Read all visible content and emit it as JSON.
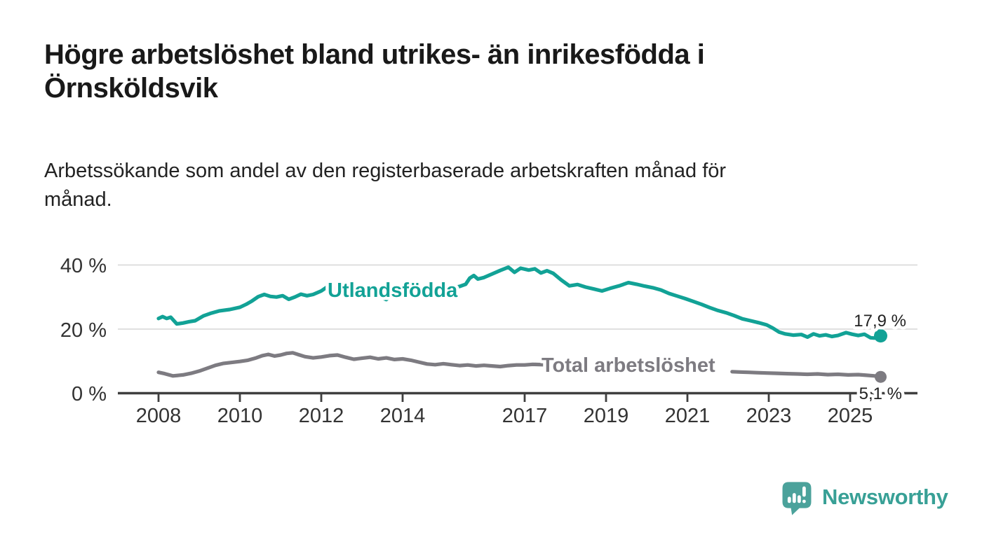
{
  "brand": {
    "name": "Newsworthy"
  },
  "colors": {
    "series_foreign_born": "#12a296",
    "series_total": "#7d7b81",
    "gridline": "#d9d9d9",
    "axis": "#3f3f3f",
    "title_text": "#191919",
    "tick_text": "#333333",
    "logo_mark": "#4ba29b",
    "logo_text": "#38a096"
  },
  "chart_data": {
    "type": "line",
    "title": "Högre arbetslöshet bland utrikes- än inrikesfödda i Örnsköldsvik",
    "title_lines": [
      "Högre arbetslöshet bland utrikes- än inrikesfödda i",
      "Örnsköldsvik"
    ],
    "subtitle": "Arbetssökande som andel av den registerbaserade arbetskraften månad för månad.",
    "subtitle_lines": [
      "Arbetssökande som andel av den registerbaserade arbetskraften månad för",
      "månad."
    ],
    "unit": "%",
    "grid": "horizontal",
    "legend_position": "inline-labels",
    "xlim": [
      2007.9,
      2026.6
    ],
    "ylim": [
      0,
      43.5
    ],
    "x_ticks": [
      {
        "year": 2008,
        "label": "2008"
      },
      {
        "year": 2010,
        "label": "2010"
      },
      {
        "year": 2012,
        "label": "2012"
      },
      {
        "year": 2014,
        "label": "2014"
      },
      {
        "year": 2017,
        "label": "2017"
      },
      {
        "year": 2019,
        "label": "2019"
      },
      {
        "year": 2021,
        "label": "2021"
      },
      {
        "year": 2023,
        "label": "2023"
      },
      {
        "year": 2025,
        "label": "2025"
      }
    ],
    "y_ticks": [
      {
        "value": 0,
        "label": "0 %"
      },
      {
        "value": 20,
        "label": "20 %"
      },
      {
        "value": 40,
        "label": "40 %"
      }
    ],
    "series": [
      {
        "name": "Utlandsfödda",
        "color": "#12a296",
        "end_label": "17,9 %",
        "end_value": 17.9,
        "points": [
          [
            2008.0,
            23.3
          ],
          [
            2008.1,
            23.9
          ],
          [
            2008.2,
            23.3
          ],
          [
            2008.3,
            23.7
          ],
          [
            2008.45,
            21.6
          ],
          [
            2008.6,
            21.9
          ],
          [
            2008.75,
            22.3
          ],
          [
            2008.9,
            22.6
          ],
          [
            2009.1,
            24.1
          ],
          [
            2009.3,
            25.0
          ],
          [
            2009.5,
            25.7
          ],
          [
            2009.75,
            26.1
          ],
          [
            2010.0,
            26.8
          ],
          [
            2010.15,
            27.7
          ],
          [
            2010.3,
            28.8
          ],
          [
            2010.45,
            30.1
          ],
          [
            2010.6,
            30.8
          ],
          [
            2010.75,
            30.2
          ],
          [
            2010.9,
            30.0
          ],
          [
            2011.05,
            30.4
          ],
          [
            2011.2,
            29.3
          ],
          [
            2011.35,
            30.0
          ],
          [
            2011.5,
            30.9
          ],
          [
            2011.65,
            30.4
          ],
          [
            2011.8,
            30.8
          ],
          [
            2012.0,
            31.9
          ],
          [
            2012.15,
            33.2
          ],
          [
            2012.3,
            32.9
          ],
          [
            2012.45,
            31.7
          ],
          [
            2012.6,
            32.0
          ],
          [
            2012.8,
            32.3
          ],
          [
            2013.0,
            32.1
          ],
          [
            2013.2,
            32.5
          ],
          [
            2013.35,
            31.7
          ],
          [
            2013.45,
            30.0
          ],
          [
            2013.6,
            29.2
          ],
          [
            2013.75,
            30.8
          ],
          [
            2014.0,
            31.5
          ],
          [
            2014.2,
            32.3
          ],
          [
            2014.4,
            31.8
          ],
          [
            2014.6,
            31.4
          ],
          [
            2014.8,
            31.9
          ],
          [
            2015.0,
            32.3
          ],
          [
            2015.2,
            32.8
          ],
          [
            2015.4,
            33.3
          ],
          [
            2015.55,
            34.0
          ],
          [
            2015.65,
            35.9
          ],
          [
            2015.75,
            36.7
          ],
          [
            2015.85,
            35.6
          ],
          [
            2016.0,
            36.1
          ],
          [
            2016.2,
            37.2
          ],
          [
            2016.4,
            38.3
          ],
          [
            2016.6,
            39.3
          ],
          [
            2016.75,
            37.7
          ],
          [
            2016.9,
            39.0
          ],
          [
            2017.1,
            38.4
          ],
          [
            2017.25,
            38.8
          ],
          [
            2017.4,
            37.5
          ],
          [
            2017.55,
            38.2
          ],
          [
            2017.7,
            37.4
          ],
          [
            2017.9,
            35.3
          ],
          [
            2018.1,
            33.5
          ],
          [
            2018.3,
            33.9
          ],
          [
            2018.5,
            33.1
          ],
          [
            2018.7,
            32.5
          ],
          [
            2018.9,
            31.9
          ],
          [
            2019.1,
            32.7
          ],
          [
            2019.35,
            33.6
          ],
          [
            2019.55,
            34.5
          ],
          [
            2019.75,
            34.0
          ],
          [
            2019.95,
            33.4
          ],
          [
            2020.15,
            32.9
          ],
          [
            2020.35,
            32.2
          ],
          [
            2020.55,
            31.1
          ],
          [
            2020.75,
            30.3
          ],
          [
            2020.95,
            29.5
          ],
          [
            2021.15,
            28.6
          ],
          [
            2021.35,
            27.7
          ],
          [
            2021.55,
            26.7
          ],
          [
            2021.75,
            25.8
          ],
          [
            2021.95,
            25.1
          ],
          [
            2022.15,
            24.2
          ],
          [
            2022.35,
            23.2
          ],
          [
            2022.55,
            22.6
          ],
          [
            2022.75,
            22.0
          ],
          [
            2022.95,
            21.3
          ],
          [
            2023.1,
            20.3
          ],
          [
            2023.25,
            19.1
          ],
          [
            2023.4,
            18.5
          ],
          [
            2023.6,
            18.1
          ],
          [
            2023.8,
            18.3
          ],
          [
            2023.95,
            17.5
          ],
          [
            2024.1,
            18.5
          ],
          [
            2024.25,
            17.9
          ],
          [
            2024.4,
            18.2
          ],
          [
            2024.55,
            17.7
          ],
          [
            2024.7,
            18.0
          ],
          [
            2024.9,
            18.9
          ],
          [
            2025.05,
            18.4
          ],
          [
            2025.2,
            18.0
          ],
          [
            2025.35,
            18.4
          ],
          [
            2025.5,
            17.3
          ],
          [
            2025.6,
            17.2
          ],
          [
            2025.75,
            17.9
          ]
        ]
      },
      {
        "name": "Total arbetslöshet",
        "color": "#7d7b81",
        "end_label": "5,1 %",
        "end_value": 5.1,
        "label_gap_years": [
          2017.45,
          2022.1
        ],
        "points": [
          [
            2008.0,
            6.5
          ],
          [
            2008.15,
            6.1
          ],
          [
            2008.35,
            5.4
          ],
          [
            2008.6,
            5.7
          ],
          [
            2008.8,
            6.2
          ],
          [
            2009.0,
            6.9
          ],
          [
            2009.2,
            7.8
          ],
          [
            2009.4,
            8.7
          ],
          [
            2009.6,
            9.3
          ],
          [
            2009.8,
            9.6
          ],
          [
            2010.0,
            9.9
          ],
          [
            2010.2,
            10.3
          ],
          [
            2010.4,
            11.0
          ],
          [
            2010.55,
            11.7
          ],
          [
            2010.7,
            12.1
          ],
          [
            2010.85,
            11.6
          ],
          [
            2011.0,
            11.9
          ],
          [
            2011.15,
            12.4
          ],
          [
            2011.3,
            12.6
          ],
          [
            2011.45,
            12.0
          ],
          [
            2011.6,
            11.4
          ],
          [
            2011.8,
            11.0
          ],
          [
            2012.0,
            11.3
          ],
          [
            2012.2,
            11.7
          ],
          [
            2012.4,
            11.9
          ],
          [
            2012.6,
            11.2
          ],
          [
            2012.8,
            10.6
          ],
          [
            2013.0,
            10.9
          ],
          [
            2013.2,
            11.2
          ],
          [
            2013.4,
            10.7
          ],
          [
            2013.6,
            11.0
          ],
          [
            2013.8,
            10.5
          ],
          [
            2014.0,
            10.7
          ],
          [
            2014.2,
            10.3
          ],
          [
            2014.4,
            9.7
          ],
          [
            2014.6,
            9.1
          ],
          [
            2014.8,
            8.9
          ],
          [
            2015.0,
            9.2
          ],
          [
            2015.2,
            8.9
          ],
          [
            2015.4,
            8.6
          ],
          [
            2015.6,
            8.8
          ],
          [
            2015.8,
            8.5
          ],
          [
            2016.0,
            8.7
          ],
          [
            2016.2,
            8.5
          ],
          [
            2016.4,
            8.3
          ],
          [
            2016.6,
            8.6
          ],
          [
            2016.8,
            8.8
          ],
          [
            2017.0,
            8.8
          ],
          [
            2017.2,
            9.0
          ],
          [
            2017.45,
            8.9
          ],
          [
            2022.1,
            6.7
          ],
          [
            2022.3,
            6.6
          ],
          [
            2022.5,
            6.5
          ],
          [
            2022.7,
            6.4
          ],
          [
            2022.95,
            6.3
          ],
          [
            2023.2,
            6.2
          ],
          [
            2023.45,
            6.1
          ],
          [
            2023.7,
            6.0
          ],
          [
            2023.95,
            5.9
          ],
          [
            2024.2,
            6.0
          ],
          [
            2024.45,
            5.8
          ],
          [
            2024.7,
            5.9
          ],
          [
            2024.95,
            5.7
          ],
          [
            2025.2,
            5.8
          ],
          [
            2025.4,
            5.6
          ],
          [
            2025.6,
            5.4
          ],
          [
            2025.75,
            5.1
          ]
        ]
      }
    ]
  }
}
